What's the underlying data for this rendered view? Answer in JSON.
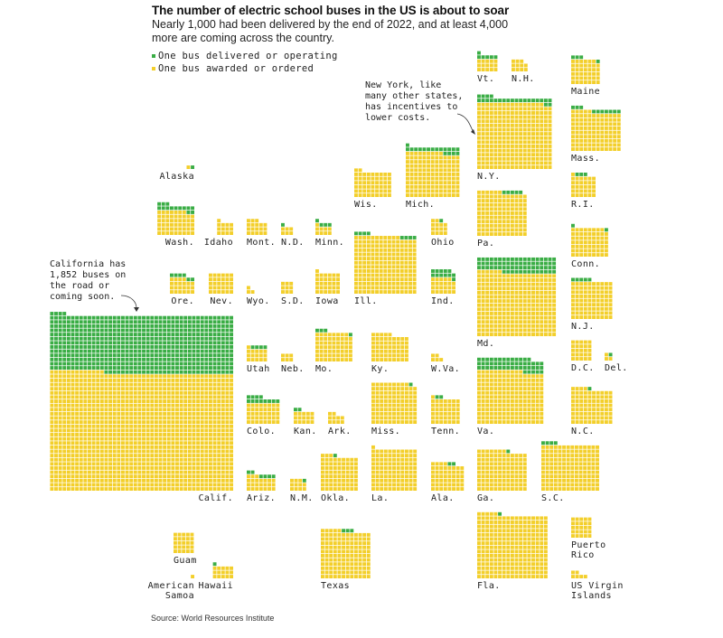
{
  "title": "The number of electric school buses in the US is about to soar",
  "subtitle": "Nearly 1,000 had been delivered by the end of 2022, and at least 4,000 more are coming across the country.",
  "legend": {
    "delivered": "One bus delivered or operating",
    "ordered": "One bus awarded or ordered"
  },
  "colors": {
    "delivered": "#3aad45",
    "ordered": "#f3cf2b"
  },
  "annotations": {
    "new_york": "New York, like\nmany other states,\nhas incentives to\nlower costs.",
    "california": "California has\n1,852 buses on\nthe road or\ncoming soon."
  },
  "source": "Source: World Resources Institute",
  "chart_data": {
    "type": "waffle",
    "title": "The number of electric school buses in the US is about to soar",
    "legend": [
      "One bus delivered or operating",
      "One bus awarded or ordered"
    ],
    "states": [
      {
        "label": "Alaska",
        "total": 2,
        "delivered": 1
      },
      {
        "label": "Wash.",
        "total": 66,
        "delivered": 14
      },
      {
        "label": "Idaho",
        "total": 13,
        "delivered": 0
      },
      {
        "label": "Mont.",
        "total": 18,
        "delivered": 0
      },
      {
        "label": "N.D.",
        "total": 7,
        "delivered": 1
      },
      {
        "label": "Minn.",
        "total": 13,
        "delivered": 4
      },
      {
        "label": "Wis.",
        "total": 56,
        "delivered": 0
      },
      {
        "label": "Mich.",
        "total": 157,
        "delivered": 18
      },
      {
        "label": "Ohio",
        "total": 15,
        "delivered": 1
      },
      {
        "label": "Ore.",
        "total": 28,
        "delivered": 6
      },
      {
        "label": "Nev.",
        "total": 30,
        "delivered": 0
      },
      {
        "label": "Wyo.",
        "total": 3,
        "delivered": 0
      },
      {
        "label": "S.D.",
        "total": 9,
        "delivered": 0
      },
      {
        "label": "Iowa",
        "total": 31,
        "delivered": 0
      },
      {
        "label": "Ill.",
        "total": 214,
        "delivered": 8
      },
      {
        "label": "Ind.",
        "total": 35,
        "delivered": 12
      },
      {
        "label": "Calif.",
        "total": 1852,
        "delivered": 607
      },
      {
        "label": "Utah",
        "total": 20,
        "delivered": 4
      },
      {
        "label": "Neb.",
        "total": 6,
        "delivered": 0
      },
      {
        "label": "Mo.",
        "total": 66,
        "delivered": 4
      },
      {
        "label": "Ky.",
        "total": 59,
        "delivered": 0
      },
      {
        "label": "W.Va.",
        "total": 5,
        "delivered": 0
      },
      {
        "label": "Colo.",
        "total": 52,
        "delivered": 12
      },
      {
        "label": "Kan.",
        "total": 17,
        "delivered": 2
      },
      {
        "label": "Ark.",
        "total": 10,
        "delivered": 0
      },
      {
        "label": "Miss.",
        "total": 109,
        "delivered": 1
      },
      {
        "label": "Tenn.",
        "total": 45,
        "delivered": 2
      },
      {
        "label": "Ariz.",
        "total": 30,
        "delivered": 6
      },
      {
        "label": "N.M.",
        "total": 12,
        "delivered": 1
      },
      {
        "label": "Okla.",
        "total": 76,
        "delivered": 1
      },
      {
        "label": "La.",
        "total": 111,
        "delivered": 0
      },
      {
        "label": "Ala.",
        "total": 54,
        "delivered": 2
      },
      {
        "label": "Texas",
        "total": 140,
        "delivered": 3
      },
      {
        "label": "Guam",
        "total": 25,
        "delivered": 0
      },
      {
        "label": "American\nSamoa",
        "total": 1,
        "delivered": 0
      },
      {
        "label": "Hawaii",
        "total": 16,
        "delivered": 1
      },
      {
        "label": "Vt.",
        "total": 21,
        "delivered": 6
      },
      {
        "label": "N.H.",
        "total": 11,
        "delivered": 0
      },
      {
        "label": "Maine",
        "total": 45,
        "delivered": 4
      },
      {
        "label": "N.Y.",
        "total": 310,
        "delivered": 24
      },
      {
        "label": "Mass.",
        "total": 123,
        "delivered": 10
      },
      {
        "label": "R.I.",
        "total": 34,
        "delivered": 3
      },
      {
        "label": "Conn.",
        "total": 64,
        "delivered": 2
      },
      {
        "label": "Pa.",
        "total": 131,
        "delivered": 5
      },
      {
        "label": "Md.",
        "total": 361,
        "delivered": 70
      },
      {
        "label": "N.J.",
        "total": 95,
        "delivered": 5
      },
      {
        "label": "D.C.",
        "total": 25,
        "delivered": 0
      },
      {
        "label": "Del.",
        "total": 4,
        "delivered": 1
      },
      {
        "label": "Va.",
        "total": 253,
        "delivered": 50
      },
      {
        "label": "N.C.",
        "total": 85,
        "delivered": 1
      },
      {
        "label": "Ga.",
        "total": 116,
        "delivered": 1
      },
      {
        "label": "S.C.",
        "total": 158,
        "delivered": 4
      },
      {
        "label": "Fla.",
        "total": 261,
        "delivered": 1
      },
      {
        "label": "Puerto\nRico",
        "total": 25,
        "delivered": 0
      },
      {
        "label": "US Virgin\nIslands",
        "total": 6,
        "delivered": 0
      }
    ]
  }
}
